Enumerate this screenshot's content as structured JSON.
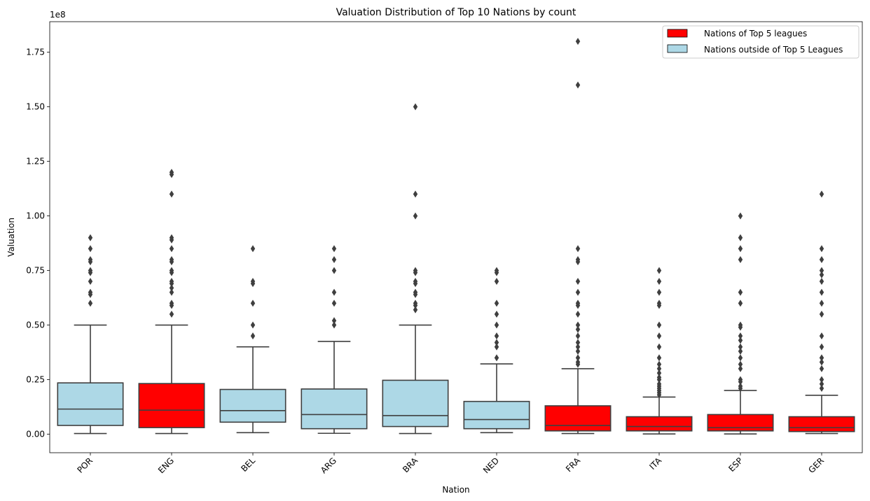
{
  "chart_data": {
    "type": "box",
    "title": "Valuation Distribution of Top 10 Nations by count",
    "xlabel": "Nation",
    "ylabel": "Valuation",
    "y_multiplier": "1e8",
    "ylim": [
      -0.085,
      1.89
    ],
    "yticks": [
      0.0,
      0.25,
      0.5,
      0.75,
      1.0,
      1.25,
      1.5,
      1.75
    ],
    "ytick_labels": [
      "0.00",
      "0.25",
      "0.50",
      "0.75",
      "1.00",
      "1.25",
      "1.50",
      "1.75"
    ],
    "categories": [
      "POR",
      "ENG",
      "BEL",
      "ARG",
      "BRA",
      "NED",
      "FRA",
      "ITA",
      "ESP",
      "GER"
    ],
    "groups": [
      "outside",
      "top5",
      "outside",
      "outside",
      "outside",
      "outside",
      "top5",
      "top5",
      "top5",
      "top5"
    ],
    "colors": {
      "top5": "#ff0000",
      "outside": "#add8e6",
      "line": "#3f3f3f"
    },
    "legend": {
      "position": "upper right",
      "entries": [
        {
          "label": "Nations of Top 5 leagues",
          "group": "top5"
        },
        {
          "label": "Nations outside of Top 5 Leagues",
          "group": "outside"
        }
      ]
    },
    "boxes": [
      {
        "q1": 0.04,
        "median": 0.115,
        "q3": 0.235,
        "whislo": 0.003,
        "whishi": 0.5,
        "fliers": [
          0.9,
          0.85,
          0.8,
          0.79,
          0.75,
          0.74,
          0.7,
          0.65,
          0.64,
          0.6
        ]
      },
      {
        "q1": 0.03,
        "median": 0.11,
        "q3": 0.232,
        "whislo": 0.003,
        "whishi": 0.5,
        "fliers": [
          1.2,
          1.19,
          1.1,
          0.9,
          0.89,
          0.85,
          0.8,
          0.79,
          0.75,
          0.74,
          0.7,
          0.69,
          0.67,
          0.65,
          0.6,
          0.59,
          0.55
        ]
      },
      {
        "q1": 0.055,
        "median": 0.108,
        "q3": 0.205,
        "whislo": 0.007,
        "whishi": 0.4,
        "fliers": [
          0.85,
          0.7,
          0.69,
          0.6,
          0.5,
          0.45
        ]
      },
      {
        "q1": 0.025,
        "median": 0.09,
        "q3": 0.207,
        "whislo": 0.004,
        "whishi": 0.425,
        "fliers": [
          0.85,
          0.8,
          0.75,
          0.65,
          0.6,
          0.52,
          0.5
        ]
      },
      {
        "q1": 0.035,
        "median": 0.085,
        "q3": 0.247,
        "whislo": 0.003,
        "whishi": 0.5,
        "fliers": [
          1.5,
          1.1,
          1.0,
          0.75,
          0.74,
          0.7,
          0.69,
          0.65,
          0.64,
          0.6,
          0.59,
          0.57
        ]
      },
      {
        "q1": 0.025,
        "median": 0.067,
        "q3": 0.15,
        "whislo": 0.007,
        "whishi": 0.322,
        "fliers": [
          0.75,
          0.74,
          0.7,
          0.6,
          0.55,
          0.5,
          0.45,
          0.42,
          0.4,
          0.35
        ]
      },
      {
        "q1": 0.015,
        "median": 0.04,
        "q3": 0.13,
        "whislo": 0.003,
        "whishi": 0.3,
        "fliers": [
          1.8,
          1.6,
          0.85,
          0.8,
          0.79,
          0.7,
          0.65,
          0.6,
          0.59,
          0.55,
          0.5,
          0.48,
          0.45,
          0.42,
          0.4,
          0.38,
          0.35,
          0.33,
          0.32
        ]
      },
      {
        "q1": 0.015,
        "median": 0.035,
        "q3": 0.08,
        "whislo": 0.001,
        "whishi": 0.17,
        "fliers": [
          0.75,
          0.7,
          0.65,
          0.6,
          0.59,
          0.5,
          0.45,
          0.4,
          0.35,
          0.32,
          0.3,
          0.28,
          0.26,
          0.25,
          0.23,
          0.22,
          0.21,
          0.2,
          0.19,
          0.18
        ]
      },
      {
        "q1": 0.015,
        "median": 0.03,
        "q3": 0.09,
        "whislo": 0.001,
        "whishi": 0.2,
        "fliers": [
          1.0,
          0.9,
          0.85,
          0.8,
          0.65,
          0.6,
          0.5,
          0.49,
          0.45,
          0.43,
          0.4,
          0.38,
          0.35,
          0.32,
          0.3,
          0.25,
          0.24,
          0.22,
          0.21
        ]
      },
      {
        "q1": 0.012,
        "median": 0.03,
        "q3": 0.08,
        "whislo": 0.003,
        "whishi": 0.178,
        "fliers": [
          1.1,
          0.85,
          0.8,
          0.75,
          0.73,
          0.7,
          0.65,
          0.6,
          0.55,
          0.45,
          0.4,
          0.35,
          0.33,
          0.3,
          0.25,
          0.23,
          0.21
        ]
      }
    ]
  }
}
